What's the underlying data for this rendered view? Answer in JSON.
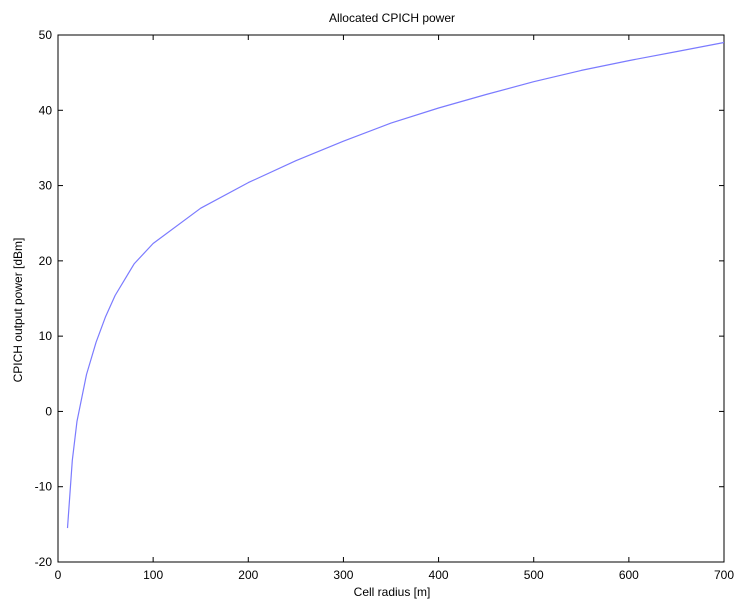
{
  "chart_data": {
    "type": "line",
    "title": "Allocated CPICH power",
    "xlabel": "Cell radius [m]",
    "ylabel": "CPICH output power [dBm]",
    "xlim": [
      0,
      700
    ],
    "ylim": [
      -20,
      50
    ],
    "xticks": [
      0,
      100,
      200,
      300,
      400,
      500,
      600,
      700
    ],
    "yticks": [
      -20,
      -10,
      0,
      10,
      20,
      30,
      40,
      50
    ],
    "grid": false,
    "series": [
      {
        "color": "#7b7bff",
        "x": [
          10,
          15,
          20,
          30,
          40,
          50,
          60,
          80,
          100,
          150,
          200,
          250,
          300,
          350,
          400,
          450,
          500,
          550,
          600,
          650,
          700
        ],
        "y": [
          -15.5,
          -6.5,
          -1.3,
          4.9,
          9.2,
          12.6,
          15.4,
          19.6,
          22.3,
          27.0,
          30.4,
          33.3,
          35.9,
          38.3,
          40.3,
          42.1,
          43.8,
          45.3,
          46.6,
          47.8,
          49.0
        ]
      }
    ]
  }
}
